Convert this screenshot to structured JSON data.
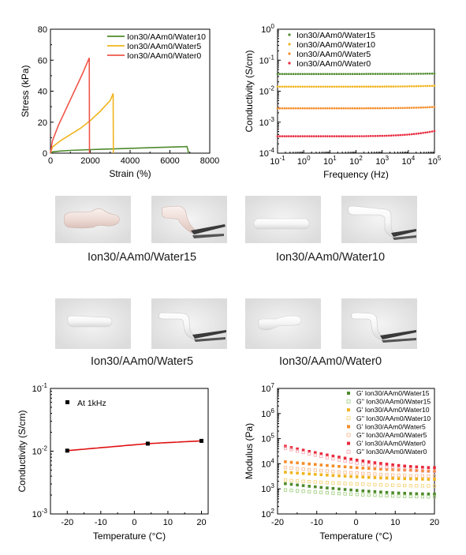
{
  "chart_data": [
    {
      "type": "line",
      "xlabel": "Strain (%)",
      "ylabel": "Stress (kPa)",
      "xlim": [
        0,
        8000
      ],
      "ylim": [
        0,
        80
      ],
      "xticks": [
        0,
        2000,
        4000,
        6000,
        8000
      ],
      "yticks": [
        0,
        20,
        40,
        60,
        80
      ],
      "legend": "top-right",
      "grid": false,
      "series": [
        {
          "name": "Ion30/AAm0/Water10",
          "color": "#4e8a2c",
          "x": [
            0,
            100,
            500,
            1000,
            2000,
            3000,
            4000,
            5000,
            6000,
            6700,
            6850,
            6900,
            6930
          ],
          "y": [
            0,
            0.8,
            1.4,
            1.8,
            2.3,
            2.7,
            3.1,
            3.5,
            3.9,
            4.2,
            4.3,
            2.5,
            0
          ]
        },
        {
          "name": "Ion30/AAm0/Water5",
          "color": "#f0b41e",
          "x": [
            0,
            100,
            500,
            1000,
            1500,
            2000,
            2500,
            3000,
            3150,
            3160
          ],
          "y": [
            0,
            4,
            8,
            12,
            16,
            21,
            27,
            34,
            38.5,
            0
          ]
        },
        {
          "name": "Ion30/AAm0/Water0",
          "color": "#f0564a",
          "x": [
            0,
            100,
            400,
            800,
            1200,
            1600,
            1950,
            1960
          ],
          "y": [
            0,
            8,
            18,
            29,
            40,
            51,
            61.5,
            0
          ]
        }
      ]
    },
    {
      "type": "scatter",
      "xlabel": "Frequency (Hz)",
      "ylabel": "Conductivity (S/cm)",
      "xscale": "log",
      "yscale": "log",
      "xlim": [
        0.1,
        100000
      ],
      "ylim": [
        0.0001,
        1
      ],
      "xtick_labels": [
        "10",
        "10",
        "10",
        "10",
        "10",
        "10",
        "10"
      ],
      "xtick_exponents": [
        "-1",
        "0",
        "1",
        "2",
        "3",
        "4",
        "5"
      ],
      "ytick_labels": [
        "10",
        "10",
        "10",
        "10",
        "10"
      ],
      "ytick_exponents": [
        "-4",
        "-3",
        "-2",
        "-1",
        "0"
      ],
      "legend": "top-left",
      "series": [
        {
          "name": "Ion30/AAm0/Water15",
          "color": "#4e8a2c",
          "level": 0.036,
          "level_end": 0.037
        },
        {
          "name": "Ion30/AAm0/Water10",
          "color": "#f0b41e",
          "level": 0.014,
          "level_end": 0.015
        },
        {
          "name": "Ion30/AAm0/Water5",
          "color": "#f58c28",
          "level": 0.0028,
          "level_end": 0.0031
        },
        {
          "name": "Ion30/AAm0/Water0",
          "color": "#e8283c",
          "level": 0.00035,
          "level_end": 0.00052
        }
      ]
    },
    {
      "type": "line",
      "xlabel": "Temperature (°C)",
      "ylabel": "Conductivity (S/cm)",
      "yscale": "log",
      "xlim": [
        -25,
        22
      ],
      "ylim": [
        0.001,
        0.1
      ],
      "xticks": [
        -20,
        -10,
        0,
        10,
        20
      ],
      "ytick_labels": [
        "10",
        "10",
        "10"
      ],
      "ytick_exponents": [
        "-3",
        "-2",
        "-1"
      ],
      "legend": "top-left",
      "series": [
        {
          "name": "At 1kHz",
          "color": "#000000",
          "line_color": "#e01010",
          "x": [
            -20,
            4,
            20
          ],
          "y": [
            0.0102,
            0.0132,
            0.0146
          ]
        }
      ]
    },
    {
      "type": "scatter",
      "xlabel": "Temperature (°C)",
      "ylabel": "Modulus (Pa)",
      "yscale": "log",
      "xlim": [
        -20,
        20
      ],
      "ylim": [
        100,
        10000000
      ],
      "xticks": [
        -20,
        -10,
        0,
        10,
        20
      ],
      "ytick_labels": [
        "10",
        "10",
        "10",
        "10",
        "10",
        "10"
      ],
      "ytick_exponents": [
        "2",
        "3",
        "4",
        "5",
        "6",
        "7"
      ],
      "legend": "top-right",
      "series": [
        {
          "name": "G' Ion30/AAm0/Water15",
          "color": "#4e8a2c",
          "filled": true,
          "y_start": 1600,
          "y_end": 620
        },
        {
          "name": "G'' Ion30/AAm0/Water15",
          "color": "#9ccc7c",
          "filled": false,
          "y_start": 900,
          "y_end": 480
        },
        {
          "name": "G' Ion30/AAm0/Water10",
          "color": "#f0b41e",
          "filled": true,
          "y_start": 4600,
          "y_end": 2400
        },
        {
          "name": "G'' Ion30/AAm0/Water10",
          "color": "#f5d070",
          "filled": false,
          "y_start": 2200,
          "y_end": 1300
        },
        {
          "name": "G' Ion30/AAm0/Water5",
          "color": "#f58c28",
          "filled": true,
          "y_start": 12000,
          "y_end": 5200
        },
        {
          "name": "G'' Ion30/AAm0/Water5",
          "color": "#f8b888",
          "filled": false,
          "y_start": 7000,
          "y_end": 3200
        },
        {
          "name": "G' Ion30/AAm0/Water0",
          "color": "#e8283c",
          "filled": true,
          "y_start": 50000,
          "y_end": 7000
        },
        {
          "name": "G'' Ion30/AAm0/Water0",
          "color": "#f4a0a8",
          "filled": false,
          "y_start": 42000,
          "y_end": 5000
        }
      ]
    }
  ],
  "photos": {
    "captions": [
      "Ion30/AAm0/Water15",
      "Ion30/AAm0/Water10",
      "Ion30/AAm0/Water5",
      "Ion30/AAm0/Water0"
    ]
  }
}
